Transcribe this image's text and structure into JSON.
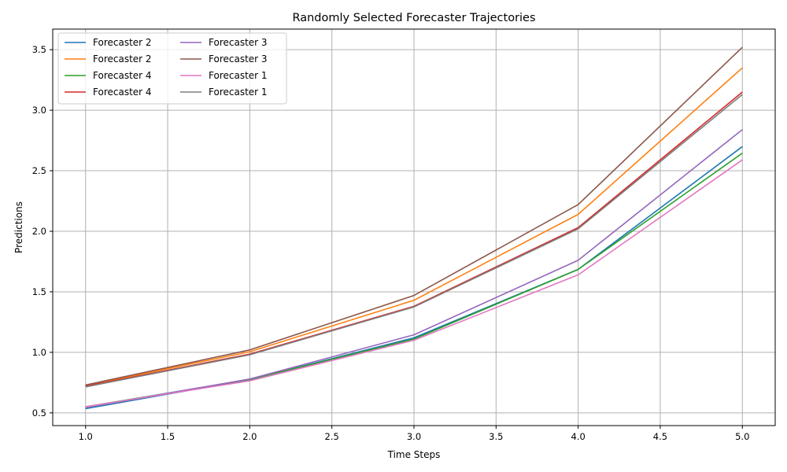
{
  "chart_data": {
    "type": "line",
    "title": "Randomly Selected Forecaster Trajectories",
    "xlabel": "Time Steps",
    "ylabel": "Predictions",
    "xlim": [
      0.8,
      5.2
    ],
    "ylim": [
      0.395,
      3.67
    ],
    "x": [
      1,
      2,
      3,
      4,
      5
    ],
    "xticks": [
      "1.0",
      "1.5",
      "2.0",
      "2.5",
      "3.0",
      "3.5",
      "4.0",
      "4.5",
      "5.0"
    ],
    "xtick_values": [
      1.0,
      1.5,
      2.0,
      2.5,
      3.0,
      3.5,
      4.0,
      4.5,
      5.0
    ],
    "yticks": [
      "0.5",
      "1.0",
      "1.5",
      "2.0",
      "2.5",
      "3.0",
      "3.5"
    ],
    "ytick_values": [
      0.5,
      1.0,
      1.5,
      2.0,
      2.5,
      3.0,
      3.5
    ],
    "grid": true,
    "legend": {
      "placement": "top-left",
      "columns": 2
    },
    "series": [
      {
        "name": "Forecaster 2",
        "color": "#1f77b4",
        "values": [
          0.535,
          0.775,
          1.12,
          1.685,
          2.7
        ]
      },
      {
        "name": "Forecaster 2",
        "color": "#ff7f0e",
        "values": [
          0.725,
          1.005,
          1.43,
          2.14,
          3.35
        ]
      },
      {
        "name": "Forecaster 4",
        "color": "#2ca02c",
        "values": [
          0.55,
          0.775,
          1.11,
          1.685,
          2.645
        ]
      },
      {
        "name": "Forecaster 4",
        "color": "#d62728",
        "values": [
          0.72,
          0.985,
          1.38,
          2.03,
          3.15
        ]
      },
      {
        "name": "Forecaster 3",
        "color": "#9467bd",
        "values": [
          0.545,
          0.78,
          1.145,
          1.76,
          2.84
        ]
      },
      {
        "name": "Forecaster 3",
        "color": "#8c564b",
        "values": [
          0.73,
          1.02,
          1.47,
          2.22,
          3.52
        ]
      },
      {
        "name": "Forecaster 1",
        "color": "#e377c2",
        "values": [
          0.55,
          0.765,
          1.1,
          1.64,
          2.59
        ]
      },
      {
        "name": "Forecaster 1",
        "color": "#7f7f7f",
        "values": [
          0.715,
          0.98,
          1.375,
          2.02,
          3.13
        ]
      }
    ]
  }
}
